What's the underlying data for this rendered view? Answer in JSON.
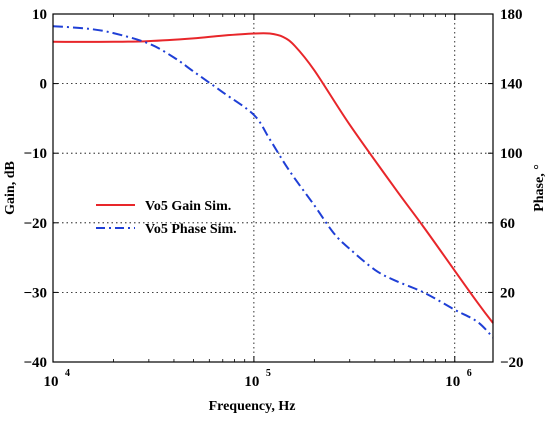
{
  "chart_data": {
    "type": "line",
    "title": "",
    "xlabel": "Frequency, Hz",
    "ylabel_left": "Gain, dB",
    "ylabel_right": "Phase, °",
    "x_scale": "log",
    "xlim": [
      10000,
      1550000
    ],
    "ylim_left": [
      -40,
      10
    ],
    "ylim_right": [
      -20,
      180
    ],
    "grid": true,
    "legend_position": "center-left",
    "x_ticks": [
      {
        "base": "10",
        "exp": "4",
        "value": 10000
      },
      {
        "base": "10",
        "exp": "5",
        "value": 100000
      },
      {
        "base": "10",
        "exp": "6",
        "value": 1000000
      }
    ],
    "y_ticks_left": [
      {
        "label": "10",
        "value": 10
      },
      {
        "label": "0",
        "value": 0
      },
      {
        "label": "−10",
        "value": -10
      },
      {
        "label": "−20",
        "value": -20
      },
      {
        "label": "−30",
        "value": -30
      },
      {
        "label": "−40",
        "value": -40
      }
    ],
    "y_ticks_right": [
      {
        "label": "180",
        "value": 180
      },
      {
        "label": "140",
        "value": 140
      },
      {
        "label": "100",
        "value": 100
      },
      {
        "label": "60",
        "value": 60
      },
      {
        "label": "20",
        "value": 20
      },
      {
        "label": "−20",
        "value": -20
      }
    ],
    "series": [
      {
        "name": "Vo5 Gain Sim.",
        "axis": "left",
        "color": "#e8262a",
        "dash": "solid",
        "x": [
          10000,
          20000,
          30000,
          50000,
          70000,
          100000,
          120000,
          140000,
          160000,
          200000,
          300000,
          500000,
          700000,
          1000000,
          1300000,
          1550000
        ],
        "y": [
          6.0,
          6.0,
          6.1,
          6.5,
          6.9,
          7.2,
          7.2,
          6.7,
          5.4,
          1.9,
          -5.9,
          -14.9,
          -20.6,
          -26.9,
          -31.5,
          -34.4
        ]
      },
      {
        "name": "Vo5 Phase Sim.",
        "axis": "right",
        "color": "#1f3fd6",
        "dash": "dashdot",
        "x": [
          10000,
          15000,
          20000,
          30000,
          40000,
          50000,
          70000,
          100000,
          120000,
          150000,
          200000,
          250000,
          300000,
          400000,
          500000,
          700000,
          1000000,
          1300000,
          1550000
        ],
        "y": [
          173,
          171.5,
          169,
          163,
          155,
          147,
          135,
          122,
          108,
          90,
          70,
          54,
          45,
          33,
          27,
          20,
          10,
          3,
          -6
        ]
      }
    ]
  }
}
